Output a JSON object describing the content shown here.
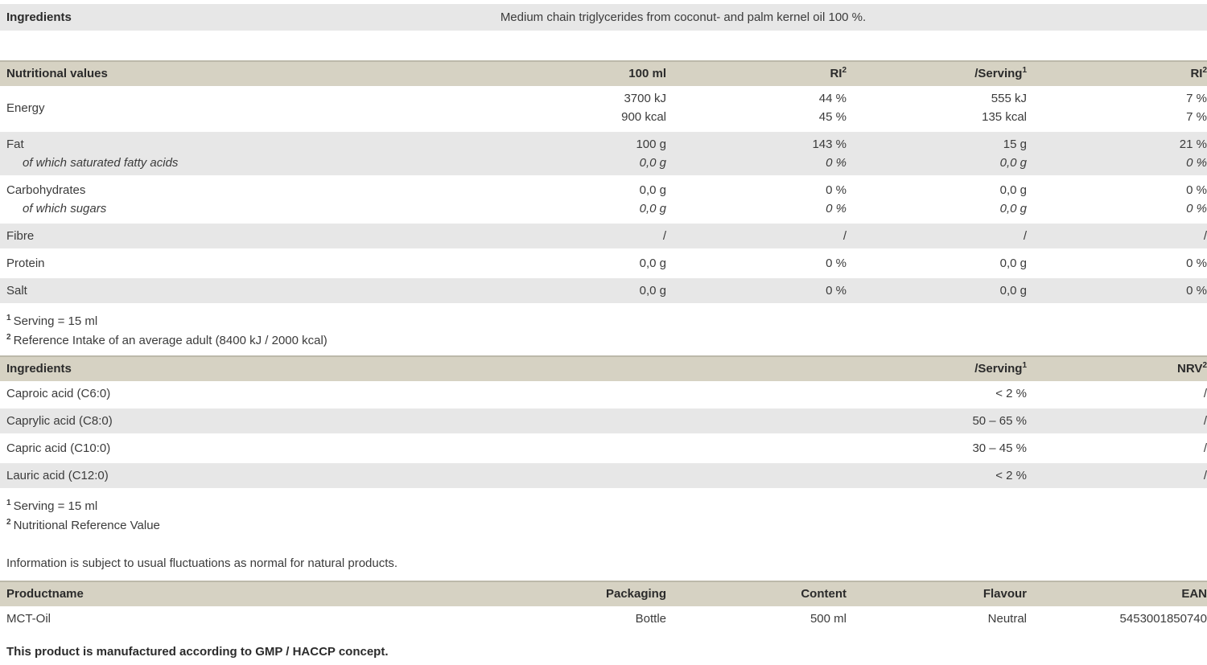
{
  "colors": {
    "header_bg": "#d6d2c3",
    "header_border": "#bcb9aa",
    "shaded_row_bg": "#e7e7e7",
    "text": "#3b3b3b"
  },
  "top": {
    "label": "Ingredients",
    "value": "Medium chain triglycerides from coconut- and palm kernel oil 100 %."
  },
  "nutrition": {
    "title": "Nutritional values",
    "columns": [
      {
        "label": "100 ml",
        "sup": ""
      },
      {
        "label": "RI",
        "sup": "2"
      },
      {
        "label": "/Serving",
        "sup": "1"
      },
      {
        "label": "RI",
        "sup": "2"
      }
    ],
    "rows": [
      {
        "label": "Energy",
        "v": [
          [
            "3700 kJ",
            "44 %",
            "555 kJ",
            "7 %"
          ],
          [
            "900 kcal",
            "45 %",
            "135 kcal",
            "7 %"
          ]
        ]
      },
      {
        "label": "Fat",
        "sub": "of which saturated fatty acids",
        "v": [
          [
            "100 g",
            "143 %",
            "15 g",
            "21 %"
          ],
          [
            "0,0 g",
            "0 %",
            "0,0 g",
            "0 %"
          ]
        ]
      },
      {
        "label": "Carbohydrates",
        "sub": "of which sugars",
        "v": [
          [
            "0,0 g",
            "0 %",
            "0,0 g",
            "0 %"
          ],
          [
            "0,0 g",
            "0 %",
            "0,0 g",
            "0 %"
          ]
        ]
      },
      {
        "label": "Fibre",
        "v": [
          [
            "/",
            "/",
            "/",
            "/"
          ]
        ]
      },
      {
        "label": "Protein",
        "v": [
          [
            "0,0 g",
            "0 %",
            "0,0 g",
            "0 %"
          ]
        ]
      },
      {
        "label": "Salt",
        "v": [
          [
            "0,0 g",
            "0 %",
            "0,0 g",
            "0 %"
          ]
        ]
      }
    ],
    "footnotes": [
      {
        "sup": "1",
        "text": "Serving = 15 ml"
      },
      {
        "sup": "2",
        "text": "Reference Intake of an average adult (8400 kJ / 2000 kcal)"
      }
    ]
  },
  "acids": {
    "title": "Ingredients",
    "columns": [
      {
        "label": "/Serving",
        "sup": "1"
      },
      {
        "label": "NRV",
        "sup": "2"
      }
    ],
    "rows": [
      {
        "label": "Caproic acid (C6:0)",
        "serving": "< 2 %",
        "nrv": "/"
      },
      {
        "label": "Caprylic acid (C8:0)",
        "serving": "50 – 65 %",
        "nrv": "/"
      },
      {
        "label": "Capric acid (C10:0)",
        "serving": "30 – 45 %",
        "nrv": "/"
      },
      {
        "label": "Lauric acid (C12:0)",
        "serving": "< 2 %",
        "nrv": "/"
      }
    ],
    "footnotes": [
      {
        "sup": "1",
        "text": "Serving = 15 ml"
      },
      {
        "sup": "2",
        "text": "Nutritional Reference Value"
      }
    ]
  },
  "disclaimer": "Information is subject to usual fluctuations as normal for natural products.",
  "product": {
    "columns": [
      "Productname",
      "Packaging",
      "Content",
      "Flavour",
      "EAN"
    ],
    "row": [
      "MCT-Oil",
      "Bottle",
      "500 ml",
      "Neutral",
      "5453001850740"
    ]
  },
  "gmp_note": "This product is manufactured according to GMP / HACCP concept."
}
